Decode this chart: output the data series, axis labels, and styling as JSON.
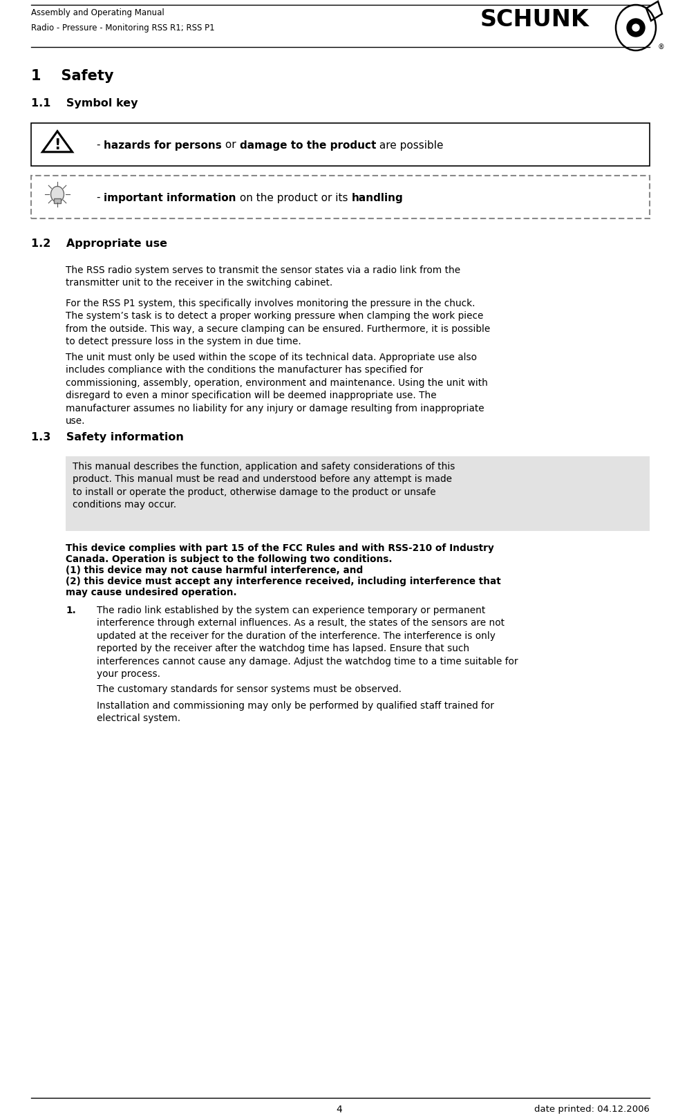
{
  "page_bg": "#ffffff",
  "header_text1": "Assembly and Operating Manual",
  "header_text2": "Radio - Pressure - Monitoring RSS R1; RSS P1",
  "footer_page": "4",
  "footer_date": "date printed: 04.12.2006",
  "section1_title": "1    Safety",
  "section11_title": "1.1    Symbol key",
  "section12_title": "1.2    Appropriate use",
  "section13_title": "1.3    Safety information",
  "para12_1": "The RSS radio system serves to transmit the sensor states via a radio link from the\ntransmitter unit to the receiver in the switching cabinet.",
  "para12_2": "For the RSS P1 system, this specifically involves monitoring the pressure in the chuck.\nThe system’s task is to detect a proper working pressure when clamping the work piece\nfrom the outside. This way, a secure clamping can be ensured. Furthermore, it is possible\nto detect pressure loss in the system in due time.",
  "para12_3": "The unit must only be used within the scope of its technical data. Appropriate use also\nincludes compliance with the conditions the manufacturer has specified for\ncommissioning, assembly, operation, environment and maintenance. Using the unit with\ndisregard to even a minor specification will be deemed inappropriate use. The\nmanufacturer assumes no liability for any injury or damage resulting from inappropriate\nuse.",
  "box13_text": "This manual describes the function, application and safety considerations of this\nproduct. This manual must be read and understood before any attempt is made\nto install or operate the product, otherwise damage to the product or unsafe\nconditions may occur.",
  "bold_para13_lines": [
    "This device complies with part 15 of the FCC Rules and with RSS-210 of Industry",
    "Canada. Operation is subject to the following two conditions.",
    "(1) this device may not cause harmful interference, and",
    "(2) this device must accept any interference received, including interference that",
    "may cause undesired operation."
  ],
  "numbered_1_label": "1.",
  "numbered_1_text": "The radio link established by the system can experience temporary or permanent\ninterference through external influences. As a result, the states of the sensors are not\nupdated at the receiver for the duration of the interference. The interference is only\nreported by the receiver after the watchdog time has lapsed. Ensure that such\ninterferences cannot cause any damage. Adjust the watchdog time to a time suitable for\nyour process.",
  "para_last1": "The customary standards for sensor systems must be observed.",
  "para_last2": "Installation and commissioning may only be performed by qualified staff trained for\nelectrical system.",
  "lmargin": 45,
  "rmargin": 940,
  "indent1": 95,
  "indent2": 140
}
